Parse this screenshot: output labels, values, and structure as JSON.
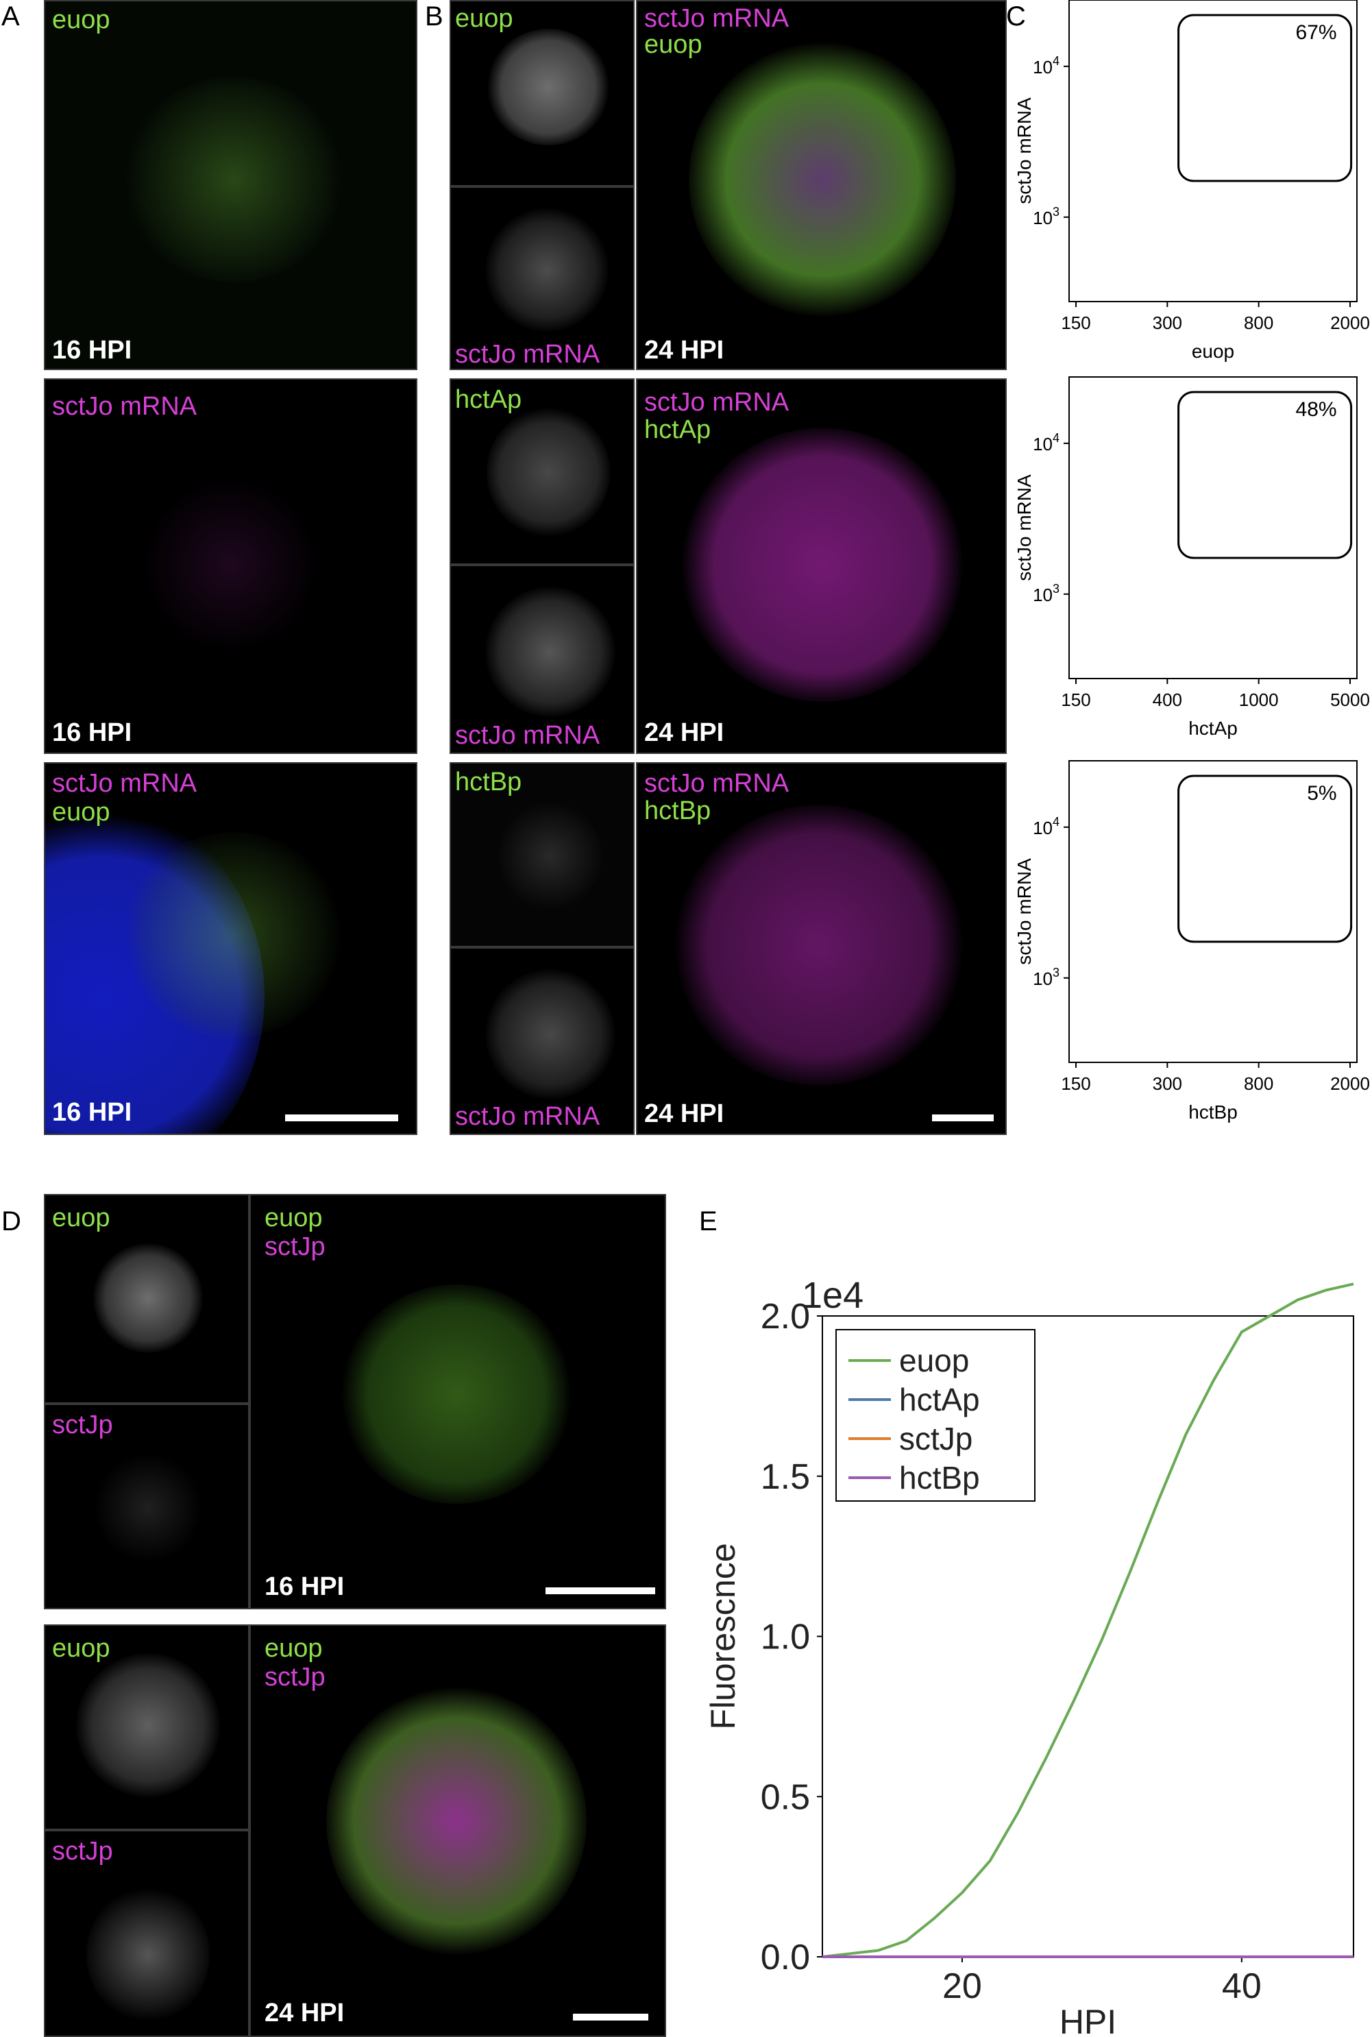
{
  "panel_labels": {
    "A": "A",
    "B": "B",
    "C": "C",
    "D": "D",
    "E": "E"
  },
  "panelA": {
    "img1": {
      "label": "euop",
      "time": "16 HPI"
    },
    "img2": {
      "label": "sctJo mRNA",
      "time": "16 HPI"
    },
    "img3": {
      "label1": "sctJo mRNA",
      "label2": "euop",
      "time": "16 HPI"
    }
  },
  "panelB": {
    "row1": {
      "small1": "euop",
      "small2": "sctJo mRNA",
      "big1": "sctJo mRNA",
      "big2": "euop",
      "time": "24 HPI"
    },
    "row2": {
      "small1": "hctAp",
      "small2": "sctJo mRNA",
      "big1": "sctJo mRNA",
      "big2": "hctAp",
      "time": "24 HPI"
    },
    "row3": {
      "small1": "hctBp",
      "small2": "sctJo mRNA",
      "big1": "sctJo mRNA",
      "big2": "hctBp",
      "time": "24 HPI"
    }
  },
  "panelD": {
    "row1": {
      "small1": "euop",
      "small2": "sctJp",
      "big1": "euop",
      "big2": "sctJp",
      "time": "16 HPI"
    },
    "row2": {
      "small1": "euop",
      "small2": "sctJp",
      "big1": "euop",
      "big2": "sctJp",
      "time": "24 HPI"
    }
  },
  "colors": {
    "magenta": "#d640d6",
    "green": "#6f9e56",
    "euop": "#6aaa55",
    "hctAp": "#4d7aa8",
    "sctJp": "#e07b2a",
    "hctBp": "#9a5bb0"
  },
  "chart_data": [
    {
      "type": "scatter",
      "x_scale": "log",
      "y_scale": "log",
      "xlabel": "euop",
      "ylabel": "sctJo mRNA",
      "xticks": [
        "150",
        "300",
        "800",
        "2000"
      ],
      "yticks": [
        "10^3",
        "10^4"
      ],
      "annotation": "67%"
    },
    {
      "type": "scatter",
      "x_scale": "log",
      "y_scale": "log",
      "xlabel": "hctAp",
      "ylabel": "sctJo mRNA",
      "xticks": [
        "150",
        "400",
        "1000",
        "5000"
      ],
      "yticks": [
        "10^3",
        "10^4"
      ],
      "annotation": "48%"
    },
    {
      "type": "scatter",
      "x_scale": "log",
      "y_scale": "log",
      "xlabel": "hctBp",
      "ylabel": "sctJo mRNA",
      "xticks": [
        "150",
        "300",
        "800",
        "2000"
      ],
      "yticks": [
        "10^3",
        "10^4"
      ],
      "annotation": "5%"
    },
    {
      "type": "line",
      "xlabel": "HPI",
      "ylabel": "Fluorescnce",
      "offset_text": "1e4",
      "xlim": [
        10,
        48
      ],
      "ylim": [
        0,
        2.0
      ],
      "xticks": [
        "20",
        "40"
      ],
      "yticks": [
        "0.0",
        "0.5",
        "1.0",
        "1.5",
        "2.0"
      ],
      "x": [
        10,
        12,
        14,
        16,
        18,
        20,
        22,
        24,
        26,
        28,
        30,
        32,
        34,
        36,
        38,
        40,
        42,
        44,
        46,
        48
      ],
      "series": [
        {
          "name": "euop",
          "values": [
            0.0,
            0.01,
            0.02,
            0.05,
            0.12,
            0.2,
            0.3,
            0.45,
            0.62,
            0.8,
            0.99,
            1.2,
            1.42,
            1.63,
            1.8,
            1.95,
            2.0,
            2.05,
            2.08,
            2.1
          ]
        },
        {
          "name": "hctAp",
          "values": [
            0.0,
            0.0,
            0.0,
            0.0,
            0.0,
            0.0,
            0.0,
            0.0,
            0.0,
            0.0,
            0.0,
            0.0,
            0.0,
            0.0,
            0.0,
            0.0,
            0.0,
            0.0,
            0.0,
            0.0
          ]
        },
        {
          "name": "sctJp",
          "values": [
            0.0,
            0.0,
            0.0,
            0.0,
            0.0,
            0.0,
            0.0,
            0.0,
            0.0,
            0.0,
            0.0,
            0.0,
            0.0,
            0.0,
            0.0,
            0.0,
            0.0,
            0.0,
            0.0,
            0.0
          ]
        },
        {
          "name": "hctBp",
          "values": [
            0.0,
            0.0,
            0.0,
            0.0,
            0.0,
            0.0,
            0.0,
            0.0,
            0.0,
            0.0,
            0.0,
            0.0,
            0.0,
            0.0,
            0.0,
            0.0,
            0.0,
            0.0,
            0.0,
            0.0
          ]
        }
      ]
    }
  ]
}
